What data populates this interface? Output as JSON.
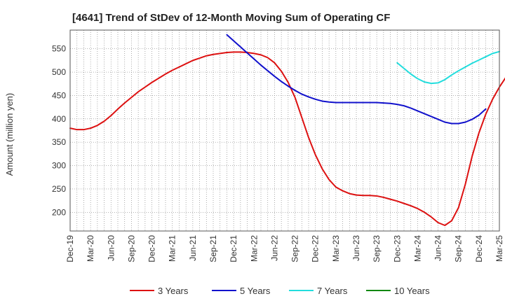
{
  "chart_data": {
    "type": "line",
    "title": "[4641]  Trend of StDev of 12-Month Moving Sum of Operating CF",
    "ylabel": "Amount (million yen)",
    "xlabel": "",
    "ylim": [
      160,
      590
    ],
    "yticks": [
      200,
      250,
      300,
      350,
      400,
      450,
      500,
      550
    ],
    "x_tick_labels": [
      "Dec-19",
      "Mar-20",
      "Jun-20",
      "Sep-20",
      "Dec-20",
      "Mar-21",
      "Jun-21",
      "Sep-21",
      "Dec-21",
      "Mar-22",
      "Jun-22",
      "Sep-22",
      "Dec-22",
      "Mar-23",
      "Jun-23",
      "Sep-23",
      "Dec-23",
      "Mar-24",
      "Jun-24",
      "Sep-24",
      "Dec-24",
      "Mar-25"
    ],
    "x_start": "Dec-19",
    "grid": true,
    "legend_position": "bottom",
    "series": [
      {
        "name": "3 Years",
        "color": "#dd1111",
        "values": [
          380,
          377,
          377,
          380,
          386,
          395,
          407,
          421,
          434,
          446,
          458,
          468,
          478,
          487,
          496,
          504,
          511,
          518,
          525,
          530,
          535,
          538,
          540,
          542,
          543,
          543,
          542,
          540,
          537,
          531,
          520,
          502,
          478,
          446,
          403,
          360,
          323,
          293,
          270,
          254,
          246,
          240,
          237,
          236,
          236,
          235,
          232,
          228,
          224,
          219,
          214,
          208,
          200,
          190,
          178,
          172,
          182,
          210,
          260,
          320,
          370,
          410,
          442,
          468,
          490,
          507
        ]
      },
      {
        "name": "5 Years",
        "color": "#1111cc",
        "values": [
          null,
          null,
          null,
          null,
          null,
          null,
          null,
          null,
          null,
          null,
          null,
          null,
          null,
          null,
          null,
          null,
          null,
          null,
          null,
          null,
          null,
          null,
          null,
          580,
          567,
          554,
          541,
          528,
          515,
          503,
          491,
          480,
          470,
          461,
          453,
          447,
          442,
          438,
          436,
          435,
          435,
          435,
          435,
          435,
          435,
          435,
          434,
          433,
          431,
          428,
          423,
          417,
          411,
          405,
          399,
          393,
          390,
          390,
          393,
          399,
          408,
          421
        ]
      },
      {
        "name": "7 Years",
        "color": "#22dddd",
        "values": [
          null,
          null,
          null,
          null,
          null,
          null,
          null,
          null,
          null,
          null,
          null,
          null,
          null,
          null,
          null,
          null,
          null,
          null,
          null,
          null,
          null,
          null,
          null,
          null,
          null,
          null,
          null,
          null,
          null,
          null,
          null,
          null,
          null,
          null,
          null,
          null,
          null,
          null,
          null,
          null,
          null,
          null,
          null,
          null,
          null,
          null,
          null,
          null,
          520,
          508,
          496,
          486,
          479,
          476,
          477,
          484,
          494,
          503,
          511,
          519,
          526,
          533,
          540,
          544
        ]
      },
      {
        "name": "10 Years",
        "color": "#118811",
        "values": []
      }
    ]
  }
}
